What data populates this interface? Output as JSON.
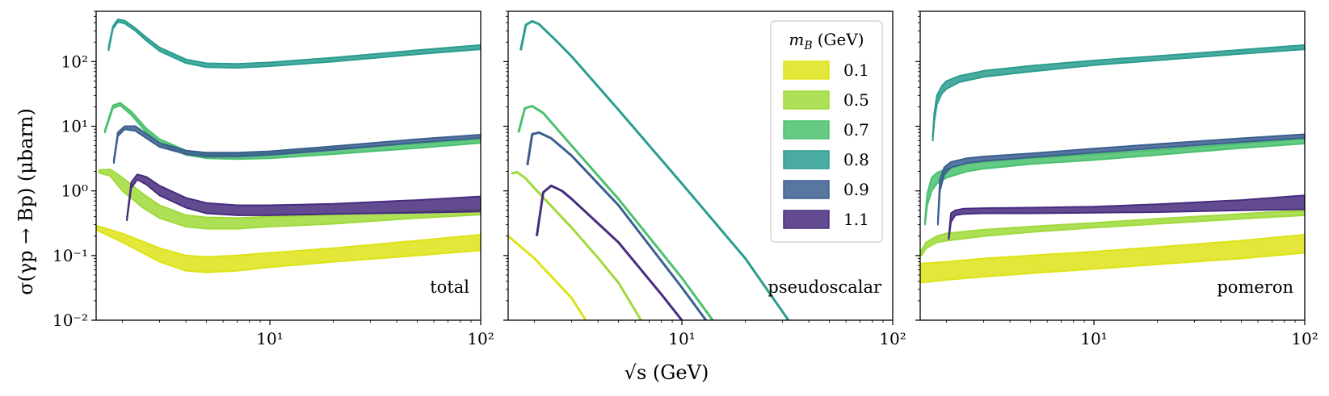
{
  "chart_data": [
    {
      "type": "area",
      "panel_label": "total",
      "scale": {
        "x": "log",
        "y": "log"
      },
      "xlim": [
        1.5,
        100
      ],
      "ylim": [
        0.01,
        600
      ],
      "series": [
        {
          "name": "0.1",
          "color": "#dde318",
          "x": [
            1.5,
            2,
            3,
            4,
            5,
            7,
            10,
            20,
            50,
            100
          ],
          "lower": [
            0.25,
            0.16,
            0.08,
            0.058,
            0.055,
            0.058,
            0.066,
            0.08,
            0.1,
            0.12
          ],
          "upper": [
            0.29,
            0.22,
            0.13,
            0.1,
            0.095,
            0.1,
            0.11,
            0.13,
            0.17,
            0.21
          ]
        },
        {
          "name": "0.5",
          "color": "#9fda3a",
          "x": [
            1.55,
            1.75,
            2,
            2.5,
            3,
            4,
            5,
            7,
            10,
            20,
            50,
            100
          ],
          "lower": [
            1.9,
            1.7,
            1.0,
            0.55,
            0.38,
            0.28,
            0.26,
            0.26,
            0.28,
            0.31,
            0.38,
            0.43
          ],
          "upper": [
            2.1,
            2.15,
            1.6,
            0.9,
            0.6,
            0.42,
            0.39,
            0.38,
            0.4,
            0.43,
            0.48,
            0.52
          ]
        },
        {
          "name": "0.7",
          "color": "#4ac16d",
          "x": [
            1.65,
            1.8,
            1.95,
            2.2,
            2.6,
            3,
            4,
            5,
            7,
            10,
            20,
            50,
            100
          ],
          "lower": [
            8,
            19,
            21,
            15,
            8,
            5.5,
            3.6,
            3.2,
            3.1,
            3.2,
            3.7,
            4.6,
            5.5
          ],
          "upper": [
            8.7,
            21,
            23,
            17,
            9.2,
            6.3,
            4.2,
            3.8,
            3.7,
            3.9,
            4.5,
            5.4,
            6.3
          ]
        },
        {
          "name": "0.8",
          "color": "#2a9d8f",
          "x": [
            1.72,
            1.8,
            1.9,
            2.05,
            2.3,
            2.6,
            3,
            4,
            5,
            7,
            10,
            20,
            50,
            100
          ],
          "lower": [
            150,
            320,
            410,
            390,
            300,
            210,
            145,
            95,
            82,
            80,
            85,
            100,
            130,
            155
          ],
          "upper": [
            170,
            350,
            450,
            430,
            330,
            235,
            165,
            108,
            94,
            92,
            97,
            115,
            150,
            180
          ]
        },
        {
          "name": "0.9",
          "color": "#3b5f8f",
          "x": [
            1.82,
            1.9,
            2.05,
            2.3,
            2.7,
            3,
            4,
            5,
            7,
            10,
            20,
            50,
            100
          ],
          "lower": [
            2.7,
            7,
            9,
            8.5,
            6,
            4.8,
            3.7,
            3.4,
            3.4,
            3.6,
            4.3,
            5.6,
            6.6
          ],
          "upper": [
            3,
            8,
            10,
            10,
            7,
            5.5,
            4.2,
            3.9,
            3.9,
            4.1,
            4.9,
            6.3,
            7.4
          ]
        },
        {
          "name": "1.1",
          "color": "#482c7e",
          "x": [
            2.1,
            2.2,
            2.35,
            2.6,
            3,
            4,
            5,
            7,
            10,
            20,
            50,
            100
          ],
          "lower": [
            0.35,
            1.1,
            1.5,
            1.25,
            0.85,
            0.55,
            0.45,
            0.42,
            0.42,
            0.44,
            0.46,
            0.48
          ],
          "upper": [
            0.38,
            1.35,
            1.8,
            1.65,
            1.2,
            0.78,
            0.65,
            0.6,
            0.6,
            0.63,
            0.72,
            0.82
          ]
        }
      ]
    },
    {
      "type": "line",
      "panel_label": "pseudoscalar",
      "scale": {
        "x": "log",
        "y": "log"
      },
      "xlim": [
        1.5,
        100
      ],
      "ylim": [
        0.01,
        600
      ],
      "series": [
        {
          "name": "0.1",
          "color": "#dde318",
          "x": [
            1.5,
            2,
            3,
            3.5
          ],
          "values": [
            0.2,
            0.09,
            0.022,
            0.01
          ]
        },
        {
          "name": "0.5",
          "color": "#9fda3a",
          "x": [
            1.55,
            1.65,
            1.8,
            2,
            3,
            4,
            5,
            6.4
          ],
          "values": [
            1.85,
            1.95,
            1.6,
            1.1,
            0.27,
            0.092,
            0.038,
            0.01
          ]
        },
        {
          "name": "0.7",
          "color": "#4ac16d",
          "x": [
            1.68,
            1.8,
            1.95,
            2.2,
            3,
            5,
            10,
            14
          ],
          "values": [
            8,
            19,
            20.5,
            16,
            5,
            0.75,
            0.045,
            0.01
          ]
        },
        {
          "name": "0.8",
          "color": "#2a9d8f",
          "x": [
            1.72,
            1.82,
            1.95,
            2.1,
            2.5,
            3,
            5,
            10,
            20,
            32
          ],
          "values": [
            150,
            370,
            420,
            380,
            220,
            120,
            18,
            1.3,
            0.09,
            0.01
          ]
        },
        {
          "name": "0.9",
          "color": "#3b5f8f",
          "x": [
            1.85,
            1.95,
            2.1,
            2.4,
            3,
            5,
            10,
            13
          ],
          "values": [
            2.5,
            7.5,
            8,
            6.5,
            3.5,
            0.6,
            0.032,
            0.01
          ]
        },
        {
          "name": "1.1",
          "color": "#482c7e",
          "x": [
            2.05,
            2.2,
            2.4,
            2.7,
            3,
            5,
            8,
            10
          ],
          "values": [
            0.2,
            0.95,
            1.2,
            1.0,
            0.75,
            0.16,
            0.025,
            0.01
          ]
        }
      ]
    },
    {
      "type": "area",
      "panel_label": "pomeron",
      "scale": {
        "x": "log",
        "y": "log"
      },
      "xlim": [
        1.5,
        100
      ],
      "ylim": [
        0.01,
        600
      ],
      "series": [
        {
          "name": "0.1",
          "color": "#dde318",
          "x": [
            1.5,
            2,
            3,
            5,
            10,
            20,
            50,
            100
          ],
          "lower": [
            0.038,
            0.042,
            0.047,
            0.053,
            0.062,
            0.073,
            0.09,
            0.11
          ],
          "upper": [
            0.075,
            0.08,
            0.09,
            0.1,
            0.115,
            0.135,
            0.17,
            0.21
          ]
        },
        {
          "name": "0.5",
          "color": "#9fda3a",
          "x": [
            1.52,
            1.6,
            1.8,
            2,
            3,
            5,
            10,
            20,
            50,
            100
          ],
          "lower": [
            0.1,
            0.13,
            0.16,
            0.17,
            0.2,
            0.23,
            0.27,
            0.31,
            0.37,
            0.42
          ],
          "upper": [
            0.12,
            0.16,
            0.2,
            0.22,
            0.25,
            0.28,
            0.32,
            0.37,
            0.44,
            0.5
          ]
        },
        {
          "name": "0.7",
          "color": "#4ac16d",
          "x": [
            1.58,
            1.62,
            1.7,
            1.8,
            2,
            2.5,
            3,
            5,
            10,
            20,
            50,
            100
          ],
          "lower": [
            0.3,
            0.6,
            1.0,
            1.3,
            1.6,
            2.0,
            2.2,
            2.6,
            3.0,
            3.6,
            4.6,
            5.4
          ],
          "upper": [
            0.35,
            0.9,
            1.6,
            1.9,
            2.2,
            2.6,
            2.8,
            3.2,
            3.7,
            4.3,
            5.4,
            6.4
          ]
        },
        {
          "name": "0.8",
          "color": "#2a9d8f",
          "x": [
            1.72,
            1.75,
            1.8,
            1.9,
            2,
            2.3,
            3,
            5,
            10,
            20,
            50,
            100
          ],
          "lower": [
            6,
            12,
            22,
            32,
            38,
            48,
            58,
            70,
            88,
            105,
            132,
            155
          ],
          "upper": [
            7,
            16,
            30,
            42,
            50,
            60,
            72,
            86,
            104,
            122,
            152,
            180
          ]
        },
        {
          "name": "0.9",
          "color": "#3b5f8f",
          "x": [
            1.82,
            1.86,
            1.95,
            2.1,
            2.5,
            3,
            5,
            10,
            20,
            50,
            100
          ],
          "lower": [
            0.3,
            1.0,
            1.8,
            2.3,
            2.7,
            2.9,
            3.3,
            3.9,
            4.6,
            5.7,
            6.6
          ],
          "upper": [
            0.35,
            1.5,
            2.3,
            2.8,
            3.2,
            3.4,
            3.8,
            4.5,
            5.3,
            6.5,
            7.5
          ]
        },
        {
          "name": "1.1",
          "color": "#482c7e",
          "x": [
            2.05,
            2.1,
            2.2,
            2.4,
            3,
            5,
            10,
            20,
            50,
            100
          ],
          "lower": [
            0.18,
            0.33,
            0.42,
            0.44,
            0.45,
            0.45,
            0.46,
            0.47,
            0.5,
            0.52
          ],
          "upper": [
            0.2,
            0.45,
            0.5,
            0.53,
            0.54,
            0.55,
            0.57,
            0.62,
            0.72,
            0.85
          ]
        }
      ]
    }
  ],
  "axes": {
    "y_tick_labels": [
      "10⁻²",
      "10⁻¹",
      "10⁰",
      "10¹",
      "10²"
    ],
    "x_tick_labels": [
      "10¹",
      "10²"
    ],
    "ylabel": "σ(γp → Bp)  (μbarn)",
    "xlabel": "√s  (GeV)"
  },
  "legend": {
    "title": "m_B (GeV)",
    "placement": "top-right of middle panel",
    "entries": [
      "0.1",
      "0.5",
      "0.7",
      "0.8",
      "0.9",
      "1.1"
    ],
    "colors": [
      "#dde318",
      "#9fda3a",
      "#4ac16d",
      "#2a9d8f",
      "#3b5f8f",
      "#482c7e"
    ]
  }
}
